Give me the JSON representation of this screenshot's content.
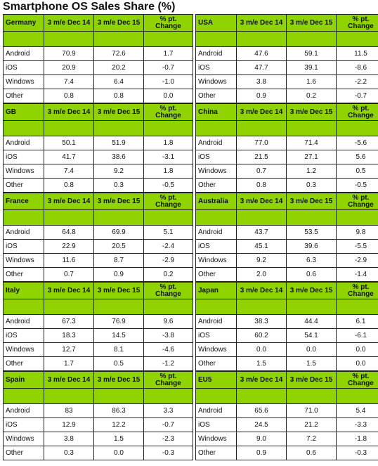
{
  "title": "Smartphone OS Sales Share (%)",
  "columns": [
    "3 m/e Dec 14",
    "3 m/e Dec 15",
    "% pt. Change"
  ],
  "chart_data": {
    "type": "table",
    "title": "Smartphone OS Sales Share (%)",
    "columns": [
      "3 m/e Dec 14",
      "3 m/e Dec 15",
      "% pt. Change"
    ],
    "regions": [
      {
        "name": "Germany",
        "rows": [
          {
            "os": "Android",
            "v": [
              "70.9",
              "72.6",
              "1.7"
            ]
          },
          {
            "os": "iOS",
            "v": [
              "20.9",
              "20.2",
              "-0.7"
            ]
          },
          {
            "os": "Windows",
            "v": [
              "7.4",
              "6.4",
              "-1.0"
            ]
          },
          {
            "os": "Other",
            "v": [
              "0.8",
              "0.8",
              "0.0"
            ]
          }
        ]
      },
      {
        "name": "USA",
        "rows": [
          {
            "os": "Android",
            "v": [
              "47.6",
              "59.1",
              "11.5"
            ]
          },
          {
            "os": "iOS",
            "v": [
              "47.7",
              "39.1",
              "-8.6"
            ]
          },
          {
            "os": "Windows",
            "v": [
              "3.8",
              "1.6",
              "-2.2"
            ]
          },
          {
            "os": "Other",
            "v": [
              "0.9",
              "0.2",
              "-0.7"
            ]
          }
        ]
      },
      {
        "name": "GB",
        "rows": [
          {
            "os": "Android",
            "v": [
              "50.1",
              "51.9",
              "1.8"
            ]
          },
          {
            "os": "iOS",
            "v": [
              "41.7",
              "38.6",
              "-3.1"
            ]
          },
          {
            "os": "Windows",
            "v": [
              "7.4",
              "9.2",
              "1.8"
            ]
          },
          {
            "os": "Other",
            "v": [
              "0.8",
              "0.3",
              "-0.5"
            ]
          }
        ]
      },
      {
        "name": "China",
        "rows": [
          {
            "os": "Android",
            "v": [
              "77.0",
              "71.4",
              "-5.6"
            ]
          },
          {
            "os": "iOS",
            "v": [
              "21.5",
              "27.1",
              "5.6"
            ]
          },
          {
            "os": "Windows",
            "v": [
              "0.7",
              "1.2",
              "0.5"
            ]
          },
          {
            "os": "Other",
            "v": [
              "0.8",
              "0.3",
              "-0.5"
            ]
          }
        ]
      },
      {
        "name": "France",
        "rows": [
          {
            "os": "Android",
            "v": [
              "64.8",
              "69.9",
              "5.1"
            ]
          },
          {
            "os": "iOS",
            "v": [
              "22.9",
              "20.5",
              "-2.4"
            ]
          },
          {
            "os": "Windows",
            "v": [
              "11.6",
              "8.7",
              "-2.9"
            ]
          },
          {
            "os": "Other",
            "v": [
              "0.7",
              "0.9",
              "0.2"
            ]
          }
        ]
      },
      {
        "name": "Australia",
        "rows": [
          {
            "os": "Android",
            "v": [
              "43.7",
              "53.5",
              "9.8"
            ]
          },
          {
            "os": "iOS",
            "v": [
              "45.1",
              "39.6",
              "-5.5"
            ]
          },
          {
            "os": "Windows",
            "v": [
              "9.2",
              "6.3",
              "-2.9"
            ]
          },
          {
            "os": "Other",
            "v": [
              "2.0",
              "0.6",
              "-1.4"
            ]
          }
        ]
      },
      {
        "name": "Italy",
        "rows": [
          {
            "os": "Android",
            "v": [
              "67.3",
              "76.9",
              "9.6"
            ]
          },
          {
            "os": "iOS",
            "v": [
              "18.3",
              "14.5",
              "-3.8"
            ]
          },
          {
            "os": "Windows",
            "v": [
              "12.7",
              "8.1",
              "-4.6"
            ]
          },
          {
            "os": "Other",
            "v": [
              "1.7",
              "0.5",
              "-1.2"
            ]
          }
        ]
      },
      {
        "name": "Japan",
        "rows": [
          {
            "os": "Android",
            "v": [
              "38.3",
              "44.4",
              "6.1"
            ]
          },
          {
            "os": "iOS",
            "v": [
              "60.2",
              "54.1",
              "-6.1"
            ]
          },
          {
            "os": "Windows",
            "v": [
              "0.0",
              "0.0",
              "0.0"
            ]
          },
          {
            "os": "Other",
            "v": [
              "1.5",
              "1.5",
              "0.0"
            ]
          }
        ]
      },
      {
        "name": "Spain",
        "rows": [
          {
            "os": "Android",
            "v": [
              "83",
              "86.3",
              "3.3"
            ]
          },
          {
            "os": "iOS",
            "v": [
              "12.9",
              "12.2",
              "-0.7"
            ]
          },
          {
            "os": "Windows",
            "v": [
              "3.8",
              "1.5",
              "-2.3"
            ]
          },
          {
            "os": "Other",
            "v": [
              "0.3",
              "0.0",
              "-0.3"
            ]
          }
        ]
      },
      {
        "name": "EU5",
        "rows": [
          {
            "os": "Android",
            "v": [
              "65.6",
              "71.0",
              "5.4"
            ]
          },
          {
            "os": "iOS",
            "v": [
              "24.5",
              "21.2",
              "-3.3"
            ]
          },
          {
            "os": "Windows",
            "v": [
              "9.0",
              "7.2",
              "-1.8"
            ]
          },
          {
            "os": "Other",
            "v": [
              "0.9",
              "0.6",
              "-0.3"
            ]
          }
        ]
      }
    ]
  },
  "colors": {
    "header_green": "#8fd400",
    "border": "#222222"
  }
}
